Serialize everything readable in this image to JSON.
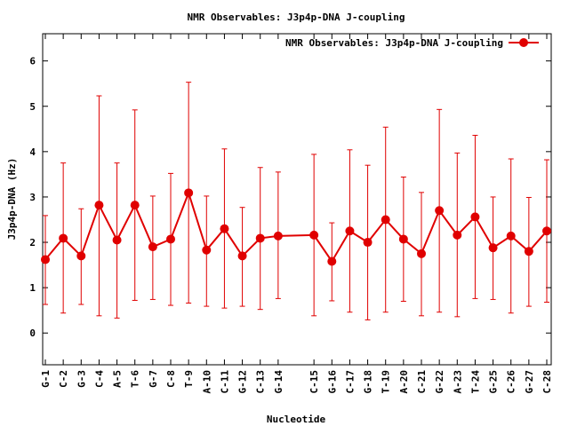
{
  "chart_data": {
    "type": "line",
    "title": "NMR Observables: J3p4p-DNA J-coupling",
    "xlabel": "Nucleotide",
    "ylabel": "J3p4p-DNA (Hz)",
    "ylim": [
      -0.7,
      6.6
    ],
    "yticks": [
      0,
      1,
      2,
      3,
      4,
      5,
      6
    ],
    "legend_position": "top-right",
    "grid": false,
    "colors": {
      "series": "#e00000",
      "axis": "#000000",
      "background": "#ffffff"
    },
    "x_positions": [
      1,
      2,
      3,
      4,
      5,
      6,
      7,
      8,
      9,
      10,
      11,
      12,
      13,
      14,
      16,
      17,
      18,
      19,
      20,
      21,
      22,
      23,
      24,
      25,
      26,
      27,
      28,
      29
    ],
    "xlim": [
      1,
      29
    ],
    "categories": [
      "G-1",
      "C-2",
      "G-3",
      "C-4",
      "A-5",
      "T-6",
      "G-7",
      "C-8",
      "T-9",
      "A-10",
      "C-11",
      "G-12",
      "C-13",
      "G-14",
      "C-15",
      "G-16",
      "C-17",
      "G-18",
      "T-19",
      "A-20",
      "C-21",
      "G-22",
      "A-23",
      "T-24",
      "G-25",
      "C-26",
      "G-27",
      "C-28"
    ],
    "series": [
      {
        "name": "NMR Observables: J3p4p-DNA J-coupling",
        "values": [
          1.62,
          2.09,
          1.7,
          2.82,
          2.05,
          2.82,
          1.9,
          2.07,
          3.09,
          1.83,
          2.3,
          1.7,
          2.09,
          2.14,
          2.16,
          1.58,
          2.25,
          2.0,
          2.5,
          2.07,
          1.75,
          2.7,
          2.16,
          2.56,
          1.88,
          2.14,
          1.8,
          2.25
        ],
        "err_low": [
          0.63,
          0.44,
          0.63,
          0.38,
          0.33,
          0.72,
          0.74,
          0.61,
          0.66,
          0.59,
          0.55,
          0.59,
          0.52,
          0.76,
          0.38,
          0.71,
          0.46,
          0.29,
          0.46,
          0.7,
          0.38,
          0.46,
          0.36,
          0.76,
          0.74,
          0.44,
          0.59,
          0.68
        ],
        "err_high": [
          2.59,
          3.75,
          2.74,
          5.23,
          3.75,
          4.92,
          3.02,
          3.52,
          5.53,
          3.02,
          4.06,
          2.77,
          3.65,
          3.55,
          3.94,
          2.43,
          4.04,
          3.7,
          4.54,
          3.44,
          3.1,
          4.93,
          3.97,
          4.36,
          3.0,
          3.84,
          2.99,
          3.82
        ]
      }
    ]
  }
}
